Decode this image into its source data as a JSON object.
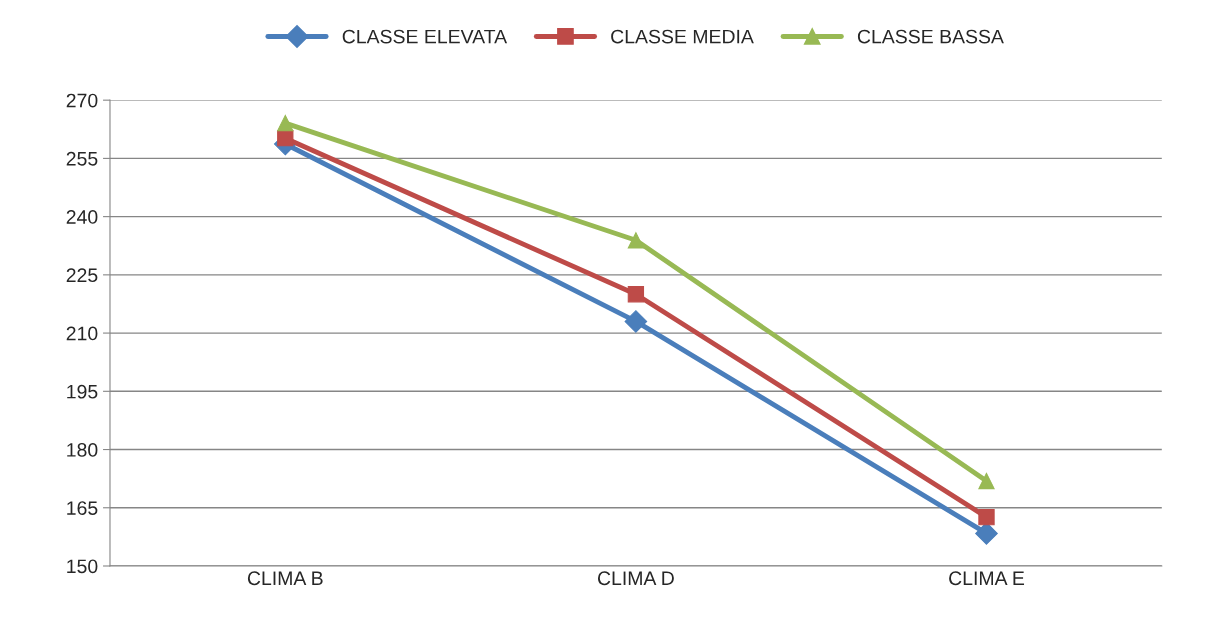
{
  "chart_data": {
    "type": "line",
    "categories": [
      "CLIMA B",
      "CLIMA D",
      "CLIMA E"
    ],
    "series": [
      {
        "name": "CLASSE ELEVATA",
        "color": "#4a7ebb",
        "marker": "diamond",
        "values": [
          258.7,
          213.0,
          158.4
        ]
      },
      {
        "name": "CLASSE MEDIA",
        "color": "#be4b48",
        "marker": "square",
        "values": [
          260.2,
          220.0,
          162.6
        ]
      },
      {
        "name": "CLASSE BASSA",
        "color": "#98b954",
        "marker": "triangle",
        "values": [
          264.1,
          233.9,
          171.9
        ]
      }
    ],
    "ylim": [
      150,
      270
    ],
    "yticks": [
      150,
      165,
      180,
      195,
      210,
      225,
      240,
      255,
      270
    ],
    "grid": "y",
    "legend": "top",
    "line_style": "solid"
  }
}
